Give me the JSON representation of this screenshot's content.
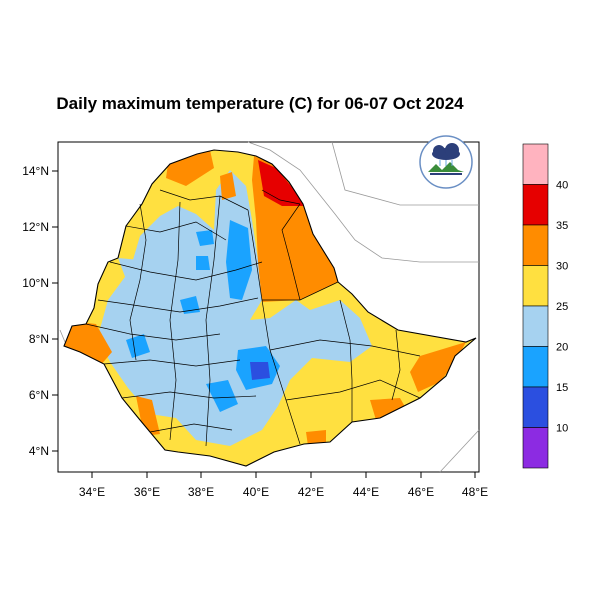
{
  "title": "Daily maximum temperature (C) for 06-07 Oct 2024",
  "map": {
    "lon_range": [
      33,
      48.2
    ],
    "lat_range": [
      3.2,
      15
    ],
    "x_ticks": [
      "34°E",
      "36°E",
      "38°E",
      "40°E",
      "42°E",
      "44°E",
      "46°E",
      "48°E"
    ],
    "y_ticks": [
      "14°N",
      "12°N",
      "10°N",
      "8°N",
      "6°N",
      "4°N"
    ]
  },
  "legend": {
    "labels": [
      "40",
      "35",
      "30",
      "25",
      "20",
      "15",
      "10"
    ],
    "colors": [
      "#ffb3bf",
      "#e60000",
      "#ff8c00",
      "#ffe040",
      "#a6d2f0",
      "#1aa3ff",
      "#2b4fe0",
      "#8c2be2"
    ]
  },
  "logo": {
    "icon": "agency-logo-icon"
  }
}
